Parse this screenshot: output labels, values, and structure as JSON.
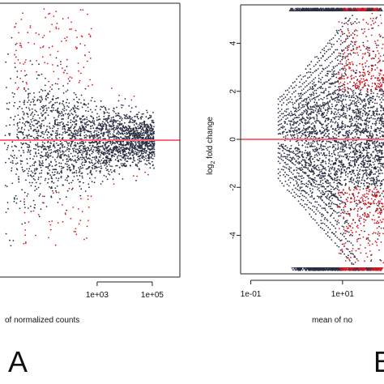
{
  "figure": {
    "panel_labels": [
      "A",
      "B"
    ]
  },
  "chart_data": [
    {
      "type": "scatter",
      "panel": "A",
      "title": "",
      "xlabel": "mean of normalized counts",
      "xlabel_visible": "of normalized counts",
      "ylabel": "",
      "x_scale": "log",
      "xlim": [
        0.3,
        1000000
      ],
      "ylim": [
        -5.4,
        5.4
      ],
      "x_ticks": [
        {
          "value": 1000,
          "label": "1e+03"
        },
        {
          "value": 100000,
          "label": "1e+05"
        }
      ],
      "y_ticks": [],
      "reference_line": {
        "y": 0,
        "color": "#ff6b7a"
      },
      "colors": {
        "significant": "#e01b24",
        "nonsignificant": "#2b2f44"
      },
      "series": [
        {
          "significance": "not significant",
          "color": "#2b2f44",
          "shape": "MA cloud: spread of about ±3 at low mean counts, narrowing to about ±0.8 near 1e+05; capped points at the top edge"
        },
        {
          "significance": "significant (padj < threshold)",
          "color": "#e01b24",
          "shape": "mostly positive fold changes between 2 and 5 at means below 1e+03, plus scattered negative points"
        }
      ]
    },
    {
      "type": "scatter",
      "panel": "B",
      "title": "",
      "xlabel": "mean of normalized counts",
      "xlabel_visible": "mean of no",
      "ylabel": "log2 fold change",
      "ylabel_main": "log",
      "ylabel_sub": "2",
      "ylabel_rest": " fold change",
      "x_scale": "log",
      "xlim": [
        0.06,
        80
      ],
      "ylim": [
        -5.6,
        5.6
      ],
      "x_ticks": [
        {
          "value": 0.1,
          "label": "1e-01"
        },
        {
          "value": 10,
          "label": "1e+01"
        }
      ],
      "y_ticks": [
        {
          "value": 4,
          "label": "4"
        },
        {
          "value": 2,
          "label": "2"
        },
        {
          "value": 0,
          "label": "0"
        },
        {
          "value": -2,
          "label": "-2"
        },
        {
          "value": -4,
          "label": "-4"
        }
      ],
      "reference_line": {
        "y": 0,
        "color": "#ff6b7a"
      },
      "capped_rows": [
        {
          "y": 5.4,
          "marker": "triangle-up"
        },
        {
          "y": -5.4,
          "marker": "triangle-down"
        }
      ],
      "colors": {
        "significant": "#e01b24",
        "nonsignificant": "#2b2f44"
      },
      "series": [
        {
          "significance": "not significant",
          "color": "#2b2f44",
          "shape": "low-count fan: diagonal streaks of discrete fold changes widening from x≈0.4 to full range by x≈10"
        },
        {
          "significance": "significant (padj < threshold)",
          "color": "#e01b24",
          "shape": "points above |lfc|≈2 at means above about 10, including capped values at ±5.4"
        }
      ]
    }
  ]
}
